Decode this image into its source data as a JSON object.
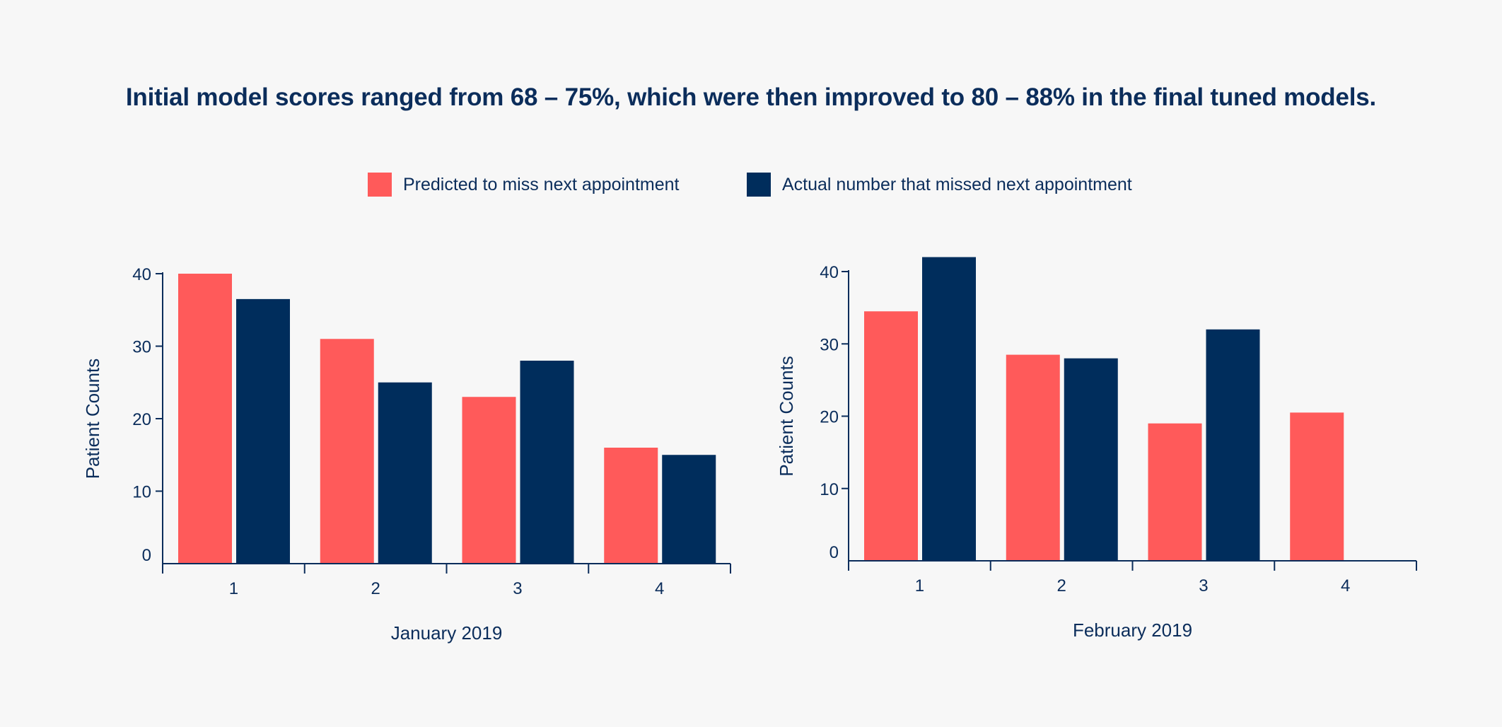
{
  "headline": "Initial model scores ranged from 68 – 75%, which were then improved to 80 – 88% in the final tuned models.",
  "legend": {
    "predicted": "Predicted to miss next appointment",
    "actual": "Actual number that missed next appointment"
  },
  "colors": {
    "predicted": "#ff5a5a",
    "actual": "#002d5c",
    "axis": "#0b2d5b",
    "background": "#f7f7f7"
  },
  "chart_data": [
    {
      "type": "bar",
      "title": "January 2019",
      "xlabel": "January 2019",
      "ylabel": "Patient Counts",
      "categories": [
        "1",
        "2",
        "3",
        "4"
      ],
      "yticks": [
        "0",
        "10",
        "20",
        "30",
        "40"
      ],
      "ylim": [
        0,
        40
      ],
      "series": [
        {
          "name": "Predicted to miss next appointment",
          "values": [
            40,
            31,
            23,
            16
          ]
        },
        {
          "name": "Actual number that missed next appointment",
          "values": [
            36.5,
            25,
            28,
            15
          ]
        }
      ]
    },
    {
      "type": "bar",
      "title": "February 2019",
      "xlabel": "February 2019",
      "ylabel": "Patient Counts",
      "categories": [
        "1",
        "2",
        "3",
        "4"
      ],
      "yticks": [
        "0",
        "10",
        "20",
        "30",
        "40"
      ],
      "ylim": [
        0,
        40
      ],
      "series": [
        {
          "name": "Predicted to miss next appointment",
          "values": [
            34.5,
            28.5,
            19,
            20.5
          ]
        },
        {
          "name": "Actual number that missed next appointment",
          "values": [
            42,
            28,
            32,
            0
          ]
        }
      ]
    }
  ]
}
